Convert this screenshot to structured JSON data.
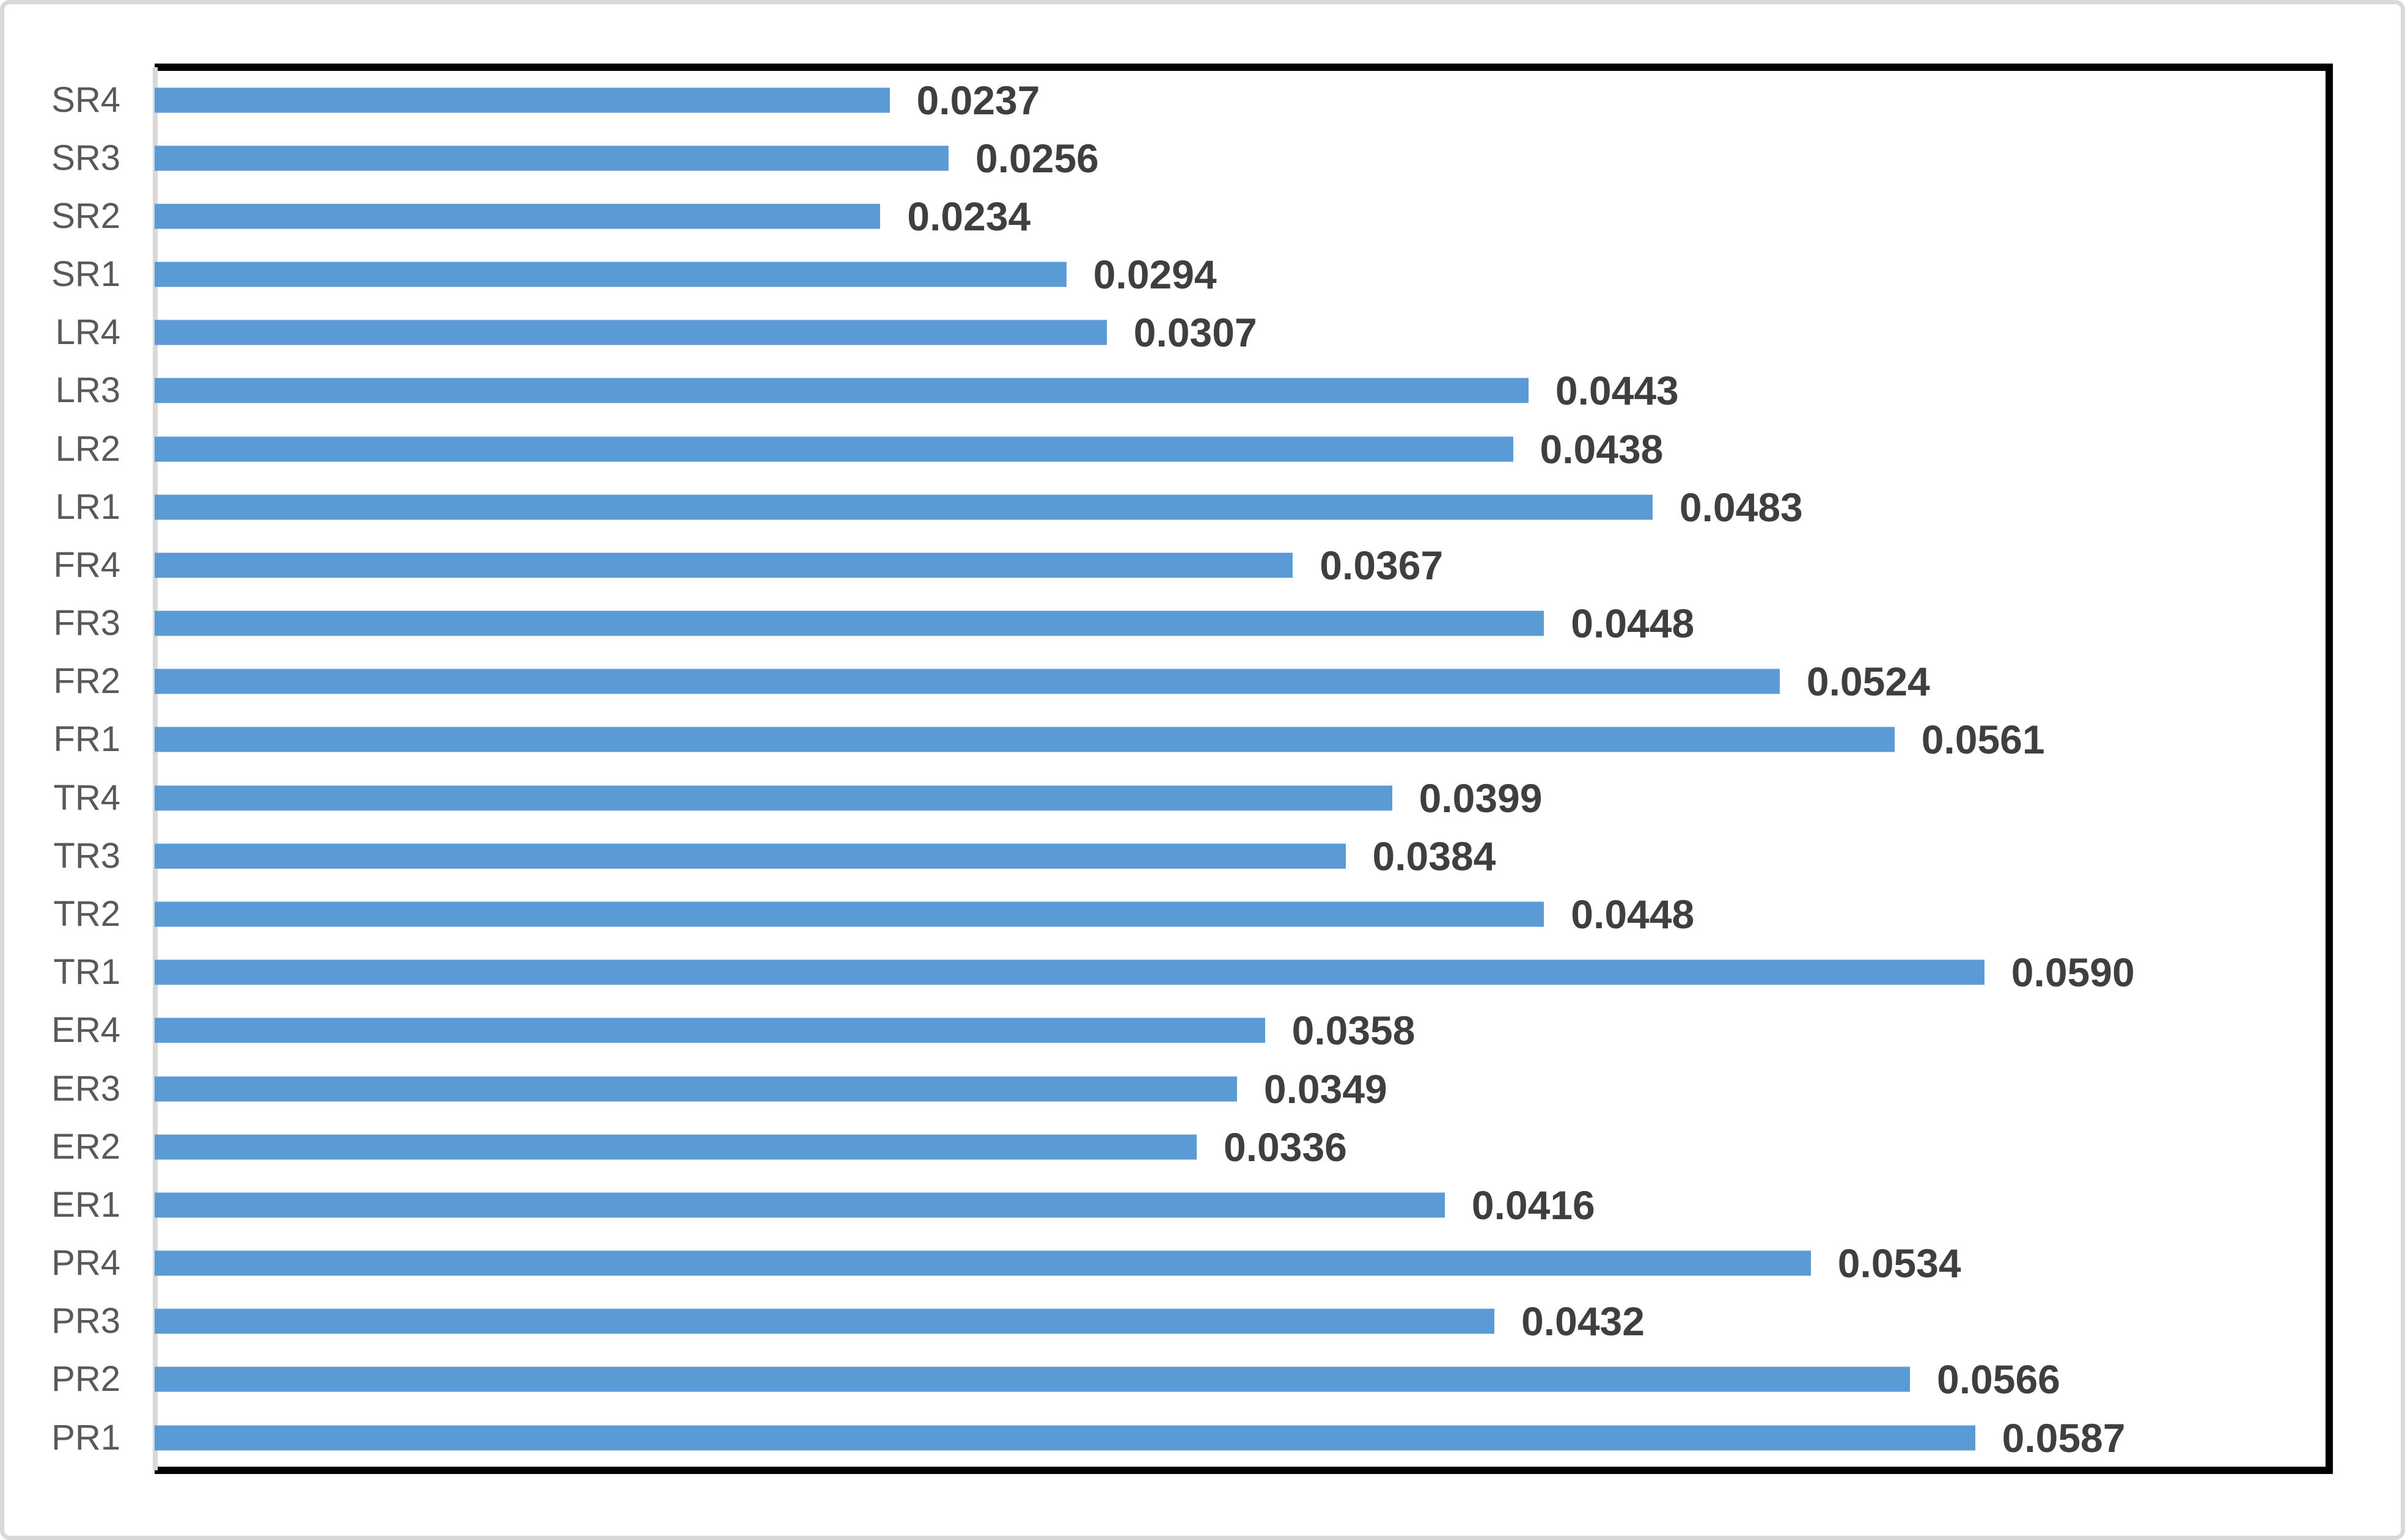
{
  "chart_data": {
    "type": "bar",
    "orientation": "horizontal",
    "title": "",
    "xlabel": "",
    "ylabel": "",
    "categories": [
      "SR4",
      "SR3",
      "SR2",
      "SR1",
      "LR4",
      "LR3",
      "LR2",
      "LR1",
      "FR4",
      "FR3",
      "FR2",
      "FR1",
      "TR4",
      "TR3",
      "TR2",
      "TR1",
      "ER4",
      "ER3",
      "ER2",
      "ER1",
      "PR4",
      "PR3",
      "PR2",
      "PR1"
    ],
    "values": [
      0.0237,
      0.0256,
      0.0234,
      0.0294,
      0.0307,
      0.0443,
      0.0438,
      0.0483,
      0.0367,
      0.0448,
      0.0524,
      0.0561,
      0.0399,
      0.0384,
      0.0448,
      0.059,
      0.0358,
      0.0349,
      0.0336,
      0.0416,
      0.0534,
      0.0432,
      0.0566,
      0.0587
    ],
    "value_labels": [
      "0.0237",
      "0.0256",
      "0.0234",
      "0.0294",
      "0.0307",
      "0.0443",
      "0.0438",
      "0.0483",
      "0.0367",
      "0.0448",
      "0.0524",
      "0.0561",
      "0.0399",
      "0.0384",
      "0.0448",
      "0.0590",
      "0.0358",
      "0.0349",
      "0.0336",
      "0.0416",
      "0.0534",
      "0.0432",
      "0.0566",
      "0.0587"
    ],
    "xlim": [
      0,
      0.07
    ],
    "grid": false,
    "legend": null,
    "data_labels_shown": true,
    "colors": {
      "bar_fill": "#5B9BD5",
      "category_label": "#595959",
      "value_label": "#3F3F3F",
      "axis_line": "#D9D9D9",
      "plot_border": "#000000",
      "outer_frame": "#D9D9D9"
    }
  }
}
